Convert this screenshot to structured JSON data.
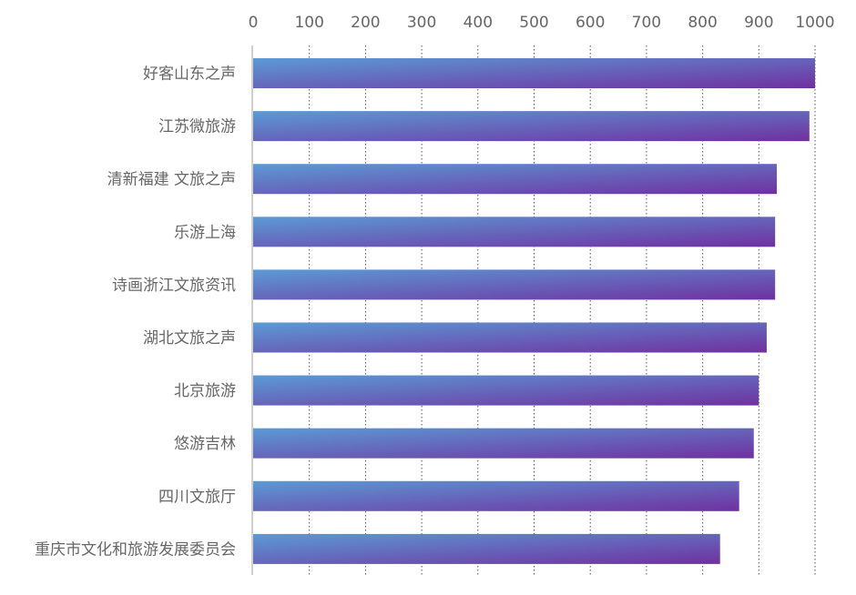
{
  "chart_data": {
    "type": "bar",
    "orientation": "horizontal",
    "title": "",
    "xlabel": "",
    "ylabel": "",
    "xlim": [
      0,
      1000
    ],
    "ticks": [
      0,
      100,
      200,
      300,
      400,
      500,
      600,
      700,
      800,
      900,
      1000
    ],
    "tick_labels": [
      "0",
      "100",
      "200",
      "300",
      "400",
      "500",
      "600",
      "700",
      "800",
      "900",
      "1000"
    ],
    "x_axis_position": "top",
    "grid": true,
    "legend": "none",
    "categories": [
      "好客山东之声",
      "江苏微旅游",
      "清新福建 文旅之声",
      "乐游上海",
      "诗画浙江文旅资讯",
      "湖北文旅之声",
      "北京旅游",
      "悠游吉林",
      "四川文旅厅",
      "重庆市文化和旅游发展委员会"
    ],
    "values": [
      1000,
      990,
      932,
      929,
      929,
      914,
      900,
      891,
      865,
      831
    ],
    "colors": {
      "bar_gradient_start": "#5b9bd5",
      "bar_gradient_end": "#7030a0",
      "axis_line": "#bfbfbf",
      "grid": "#555555",
      "text": "#666666"
    }
  }
}
